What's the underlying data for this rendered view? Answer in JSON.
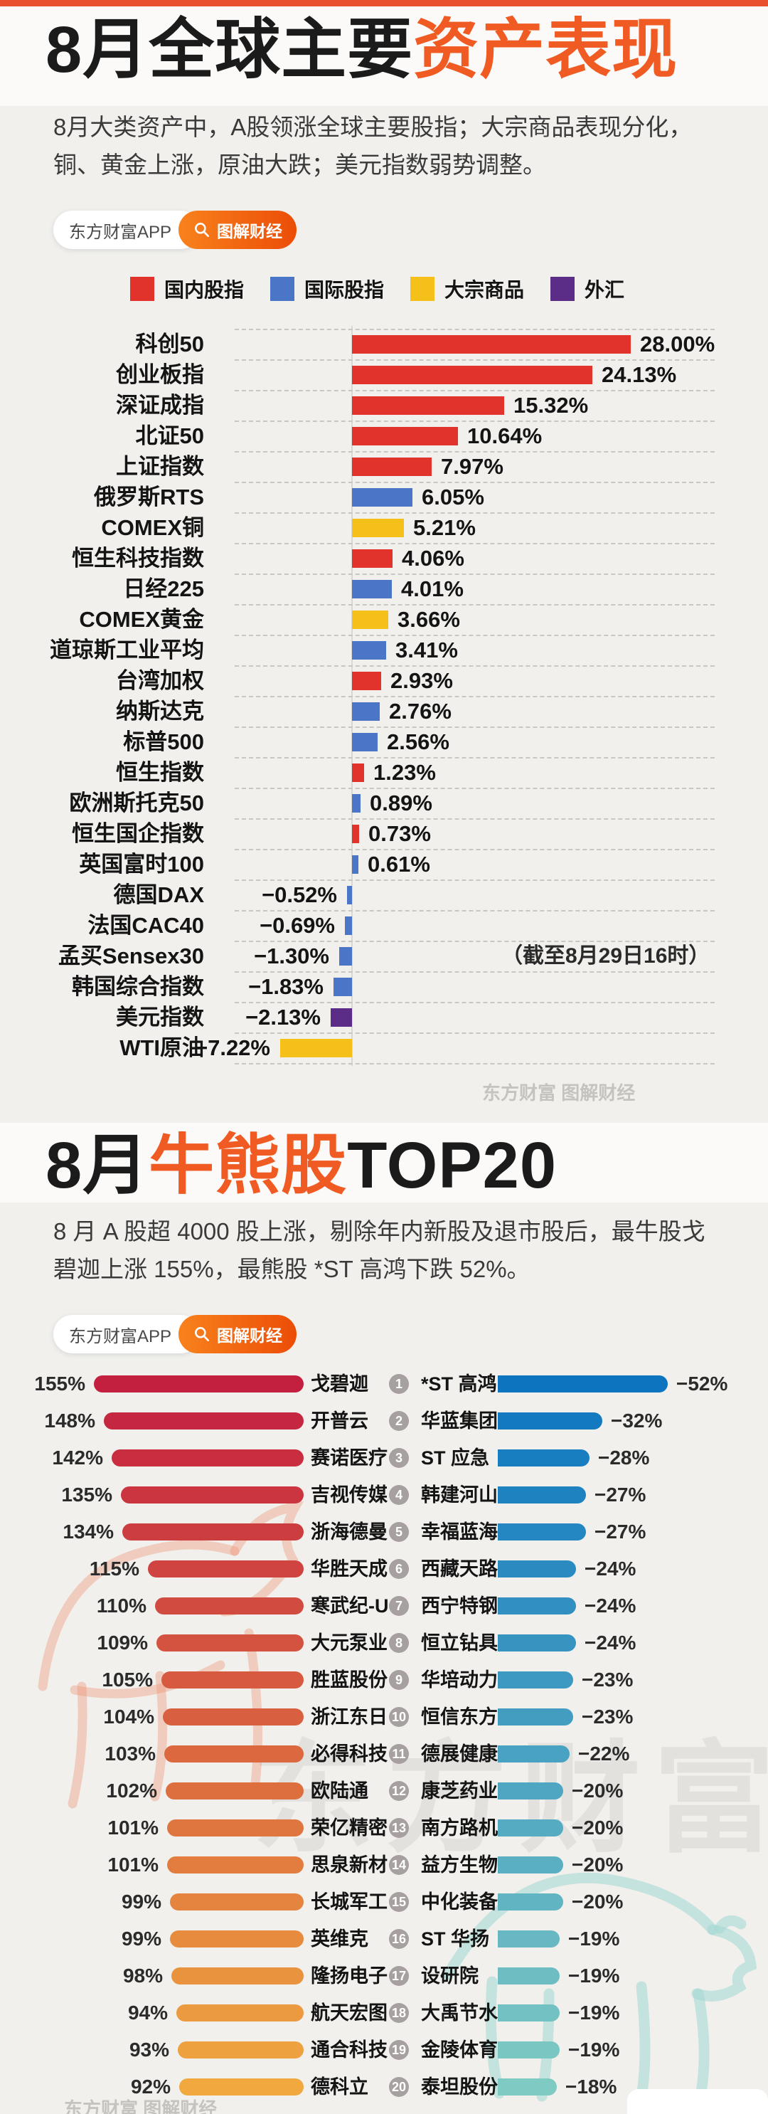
{
  "page": {
    "top_strip_color": "#e9502d",
    "background": "#f1f0ed"
  },
  "brand": {
    "app_label": "东方财富APP",
    "tag_label": "图解财经",
    "watermark": "东方财富 图解财经"
  },
  "section1": {
    "title_black": "8月全球主要",
    "title_orange": "资产表现",
    "subtitle": "8月大类资产中，A股领涨全球主要股指；大宗商品表现分化，铜、黄金上涨，原油大跌；美元指数弱势调整。",
    "annotation": "（截至8月29日16时）",
    "legend": [
      {
        "label": "国内股指",
        "color": "#e1332b"
      },
      {
        "label": "国际股指",
        "color": "#4b76c8"
      },
      {
        "label": "大宗商品",
        "color": "#f5c01a"
      },
      {
        "label": "外汇",
        "color": "#5c2d87"
      }
    ],
    "group_colors": {
      "domestic": "#e1332b",
      "intl": "#4b76c8",
      "commodity": "#f5c01a",
      "fx": "#5c2d87"
    }
  },
  "section2": {
    "title_black_1": "8月",
    "title_orange": "牛熊股",
    "title_black_2": "TOP20",
    "subtitle": "8 月 A 股超 4000 股上涨，剔除年内新股及退市股后，最牛股戈碧迦上涨 155%，最熊股 *ST 高鸿下跌 52%。",
    "bull_gradient": [
      "#c32040",
      "#f0a83f"
    ],
    "bear_gradient": [
      "#0d75c0",
      "#7fcac3"
    ],
    "watermark_big": "东方财富"
  },
  "chart_data": [
    {
      "type": "bar",
      "orientation": "horizontal",
      "title": "8月全球主要资产表现",
      "unit": "%",
      "xlim": [
        -8,
        28
      ],
      "legend": [
        "国内股指",
        "国际股指",
        "大宗商品",
        "外汇"
      ],
      "note": "（截至8月29日16时）",
      "items": [
        {
          "name": "科创50",
          "value": 28.0,
          "text": "28.00%",
          "group": "domestic"
        },
        {
          "name": "创业板指",
          "value": 24.13,
          "text": "24.13%",
          "group": "domestic"
        },
        {
          "name": "深证成指",
          "value": 15.32,
          "text": "15.32%",
          "group": "domestic"
        },
        {
          "name": "北证50",
          "value": 10.64,
          "text": "10.64%",
          "group": "domestic"
        },
        {
          "name": "上证指数",
          "value": 7.97,
          "text": "7.97%",
          "group": "domestic"
        },
        {
          "name": "俄罗斯RTS",
          "value": 6.05,
          "text": "6.05%",
          "group": "intl"
        },
        {
          "name": "COMEX铜",
          "value": 5.21,
          "text": "5.21%",
          "group": "commodity"
        },
        {
          "name": "恒生科技指数",
          "value": 4.06,
          "text": "4.06%",
          "group": "domestic"
        },
        {
          "name": "日经225",
          "value": 4.01,
          "text": "4.01%",
          "group": "intl"
        },
        {
          "name": "COMEX黄金",
          "value": 3.66,
          "text": "3.66%",
          "group": "commodity"
        },
        {
          "name": "道琼斯工业平均",
          "value": 3.41,
          "text": "3.41%",
          "group": "intl"
        },
        {
          "name": "台湾加权",
          "value": 2.93,
          "text": "2.93%",
          "group": "domestic"
        },
        {
          "name": "纳斯达克",
          "value": 2.76,
          "text": "2.76%",
          "group": "intl"
        },
        {
          "name": "标普500",
          "value": 2.56,
          "text": "2.56%",
          "group": "intl"
        },
        {
          "name": "恒生指数",
          "value": 1.23,
          "text": "1.23%",
          "group": "domestic"
        },
        {
          "name": "欧洲斯托克50",
          "value": 0.89,
          "text": "0.89%",
          "group": "intl"
        },
        {
          "name": "恒生国企指数",
          "value": 0.73,
          "text": "0.73%",
          "group": "domestic"
        },
        {
          "name": "英国富时100",
          "value": 0.61,
          "text": "0.61%",
          "group": "intl"
        },
        {
          "name": "德国DAX",
          "value": -0.52,
          "text": "−0.52%",
          "group": "intl"
        },
        {
          "name": "法国CAC40",
          "value": -0.69,
          "text": "−0.69%",
          "group": "intl"
        },
        {
          "name": "孟买Sensex30",
          "value": -1.3,
          "text": "−1.30%",
          "group": "intl"
        },
        {
          "name": "韩国综合指数",
          "value": -1.83,
          "text": "−1.83%",
          "group": "intl"
        },
        {
          "name": "美元指数",
          "value": -2.13,
          "text": "−2.13%",
          "group": "fx"
        },
        {
          "name": "WTI原油",
          "value": -7.22,
          "text": "−7.22%",
          "group": "commodity"
        }
      ]
    },
    {
      "type": "bar",
      "orientation": "horizontal",
      "title": "8月牛股TOP20",
      "unit": "%",
      "items": [
        {
          "name": "戈碧迦",
          "value": 155,
          "text": "155%"
        },
        {
          "name": "开普云",
          "value": 148,
          "text": "148%"
        },
        {
          "name": "赛诺医疗",
          "value": 142,
          "text": "142%"
        },
        {
          "name": "吉视传媒",
          "value": 135,
          "text": "135%"
        },
        {
          "name": "浙海德曼",
          "value": 134,
          "text": "134%"
        },
        {
          "name": "华胜天成",
          "value": 115,
          "text": "115%"
        },
        {
          "name": "寒武纪-U",
          "value": 110,
          "text": "110%"
        },
        {
          "name": "大元泵业",
          "value": 109,
          "text": "109%"
        },
        {
          "name": "胜蓝股份",
          "value": 105,
          "text": "105%"
        },
        {
          "name": "浙江东日",
          "value": 104,
          "text": "104%"
        },
        {
          "name": "必得科技",
          "value": 103,
          "text": "103%"
        },
        {
          "name": "欧陆通",
          "value": 102,
          "text": "102%"
        },
        {
          "name": "荣亿精密",
          "value": 101,
          "text": "101%"
        },
        {
          "name": "思泉新材",
          "value": 101,
          "text": "101%"
        },
        {
          "name": "长城军工",
          "value": 99,
          "text": "99%"
        },
        {
          "name": "英维克",
          "value": 99,
          "text": "99%"
        },
        {
          "name": "隆扬电子",
          "value": 98,
          "text": "98%"
        },
        {
          "name": "航天宏图",
          "value": 94,
          "text": "94%"
        },
        {
          "name": "通合科技",
          "value": 93,
          "text": "93%"
        },
        {
          "name": "德科立",
          "value": 92,
          "text": "92%"
        }
      ]
    },
    {
      "type": "bar",
      "orientation": "horizontal",
      "title": "8月熊股TOP20",
      "unit": "%",
      "items": [
        {
          "rank": 1,
          "name": "*ST 高鸿",
          "value": -52,
          "text": "−52%"
        },
        {
          "rank": 2,
          "name": "华蓝集团",
          "value": -32,
          "text": "−32%"
        },
        {
          "rank": 3,
          "name": "ST 应急",
          "value": -28,
          "text": "−28%"
        },
        {
          "rank": 4,
          "name": "韩建河山",
          "value": -27,
          "text": "−27%"
        },
        {
          "rank": 5,
          "name": "幸福蓝海",
          "value": -27,
          "text": "−27%"
        },
        {
          "rank": 6,
          "name": "西藏天路",
          "value": -24,
          "text": "−24%"
        },
        {
          "rank": 7,
          "name": "西宁特钢",
          "value": -24,
          "text": "−24%"
        },
        {
          "rank": 8,
          "name": "恒立钻具",
          "value": -24,
          "text": "−24%"
        },
        {
          "rank": 9,
          "name": "华培动力",
          "value": -23,
          "text": "−23%"
        },
        {
          "rank": 10,
          "name": "恒信东方",
          "value": -23,
          "text": "−23%"
        },
        {
          "rank": 11,
          "name": "德展健康",
          "value": -22,
          "text": "−22%"
        },
        {
          "rank": 12,
          "name": "康芝药业",
          "value": -20,
          "text": "−20%"
        },
        {
          "rank": 13,
          "name": "南方路机",
          "value": -20,
          "text": "−20%"
        },
        {
          "rank": 14,
          "name": "益方生物-U",
          "value": -20,
          "text": "−20%"
        },
        {
          "rank": 15,
          "name": "中化装备",
          "value": -20,
          "text": "−20%"
        },
        {
          "rank": 16,
          "name": "ST 华扬",
          "value": -19,
          "text": "−19%"
        },
        {
          "rank": 17,
          "name": "设研院",
          "value": -19,
          "text": "−19%"
        },
        {
          "rank": 18,
          "name": "大禹节水",
          "value": -19,
          "text": "−19%"
        },
        {
          "rank": 19,
          "name": "金陵体育",
          "value": -19,
          "text": "−19%"
        },
        {
          "rank": 20,
          "name": "泰坦股份",
          "value": -18,
          "text": "−18%"
        }
      ]
    }
  ]
}
